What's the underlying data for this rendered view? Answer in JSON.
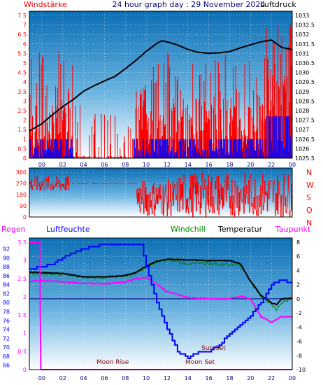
{
  "header": {
    "left_label": "Windstärke",
    "title": "24 hour graph day : 29 November 2024",
    "right_label": "Luftdruck"
  },
  "colors": {
    "red": "#ff0000",
    "blue": "#0000ff",
    "black": "#000000",
    "magenta": "#ff00ff",
    "green": "#008000",
    "navy": "#000080",
    "darkred": "#8b0000",
    "sky_top": "#0b6fb5",
    "sky_bottom": "#ffffff"
  },
  "chart_data": [
    {
      "type": "line",
      "panel": "wind-pressure",
      "x_ticks": [
        "00",
        "02",
        "04",
        "06",
        "08",
        "10",
        "12",
        "14",
        "16",
        "18",
        "20",
        "22",
        "00"
      ],
      "y_left_ticks": [
        "0",
        "0.5",
        "1",
        "1.5",
        "2",
        "2.5",
        "3",
        "3.5",
        "4",
        "4.5",
        "5",
        "5.5",
        "6",
        "6.5",
        "7",
        "7.5"
      ],
      "y_right_ticks": [
        "1025.5",
        "1026",
        "1026.5",
        "1027",
        "1027.5",
        "1028",
        "1028.5",
        "1029",
        "1029.5",
        "1030",
        "1030.5",
        "1031",
        "1031.5",
        "1032",
        "1032.5",
        "1033"
      ],
      "ylim_left": [
        0,
        7.5
      ],
      "ylim_right": [
        1025.5,
        1033
      ],
      "series": [
        {
          "color": "red",
          "axis": "left",
          "desc": "gust"
        },
        {
          "color": "blue",
          "axis": "left",
          "desc": "average wind"
        },
        {
          "color": "black",
          "axis": "right",
          "desc": "pressure"
        }
      ],
      "pressure_points": [
        [
          -1.2,
          1026.95
        ],
        [
          0,
          1027.3
        ],
        [
          1,
          1027.8
        ],
        [
          2,
          1028.2
        ],
        [
          3,
          1028.6
        ],
        [
          4,
          1029.0
        ],
        [
          5,
          1029.3
        ],
        [
          6,
          1029.55
        ],
        [
          7,
          1029.8
        ],
        [
          8,
          1030.2
        ],
        [
          9,
          1030.65
        ],
        [
          10,
          1031.1
        ],
        [
          11,
          1031.5
        ],
        [
          11.5,
          1031.65
        ],
        [
          12,
          1031.6
        ],
        [
          13,
          1031.45
        ],
        [
          14,
          1031.2
        ],
        [
          15,
          1031.05
        ],
        [
          16,
          1031.0
        ],
        [
          17,
          1031.05
        ],
        [
          18,
          1031.1
        ],
        [
          19,
          1031.3
        ],
        [
          20,
          1031.45
        ],
        [
          21,
          1031.6
        ],
        [
          22,
          1031.7
        ],
        [
          22.5,
          1031.5
        ],
        [
          23,
          1031.3
        ],
        [
          24,
          1031.2
        ]
      ],
      "gust_segments": [
        [
          -1.2,
          3,
          2.6
        ],
        [
          3,
          9,
          0.1
        ],
        [
          9,
          21.5,
          2.6
        ],
        [
          21.5,
          24,
          4.2
        ]
      ],
      "avg_segments": [
        [
          -1.2,
          3,
          1.0
        ],
        [
          3,
          8.8,
          0
        ],
        [
          8.8,
          21.5,
          1.0
        ],
        [
          21.5,
          24,
          2.2
        ]
      ]
    },
    {
      "type": "scatter",
      "panel": "wind-direction",
      "y_ticks": [
        "0",
        "90",
        "180",
        "270",
        "360"
      ],
      "compass": [
        "N",
        "W",
        "S",
        "O",
        "N"
      ],
      "ylim": [
        0,
        360
      ],
      "series": [
        {
          "color": "red"
        }
      ],
      "blocks": [
        [
          -1.2,
          2.6,
          200,
          330
        ],
        [
          2.6,
          9.1,
          265,
          275
        ],
        [
          9.1,
          13,
          0,
          300
        ],
        [
          13,
          24,
          0,
          360
        ]
      ]
    },
    {
      "type": "line",
      "panel": "temperature-humidity",
      "legend": [
        "Regen",
        "Luftfeuchte",
        "Windchill",
        "Temperatur",
        "Taupunkt"
      ],
      "y_left_ticks": [
        "0",
        "0.5",
        "1",
        "1.5",
        "2",
        "2.5",
        "3",
        "3.5"
      ],
      "y_humidity_ticks": [
        "66",
        "68",
        "70",
        "72",
        "74",
        "76",
        "78",
        "80",
        "82",
        "84",
        "86",
        "88",
        "90",
        "92"
      ],
      "y_right_ticks": [
        "-10",
        "-8",
        "-6",
        "-4",
        "-2",
        "0",
        "2",
        "4",
        "6",
        "8"
      ],
      "ylim_right": [
        -10,
        8
      ],
      "ylim_humidity": [
        65,
        93.5
      ],
      "ylim_left": [
        0,
        3.5
      ],
      "annotations": [
        "Moon Rise",
        "Moon Set",
        "Sun Set"
      ],
      "temperature_points": [
        [
          -1.2,
          3.8
        ],
        [
          0,
          3.7
        ],
        [
          2,
          3.6
        ],
        [
          4,
          3.1
        ],
        [
          6,
          3.1
        ],
        [
          8,
          3.3
        ],
        [
          9,
          3.7
        ],
        [
          10,
          4.6
        ],
        [
          11,
          5.3
        ],
        [
          12,
          5.6
        ],
        [
          14,
          5.5
        ],
        [
          16,
          5.4
        ],
        [
          18,
          5.4
        ],
        [
          19,
          5.0
        ],
        [
          20,
          2.5
        ],
        [
          21,
          0.5
        ],
        [
          22,
          -0.6
        ],
        [
          22.5,
          -0.8
        ],
        [
          23,
          0
        ],
        [
          24,
          0.1
        ]
      ],
      "windchill_points": [
        [
          -1.2,
          3.6
        ],
        [
          0,
          3.5
        ],
        [
          2,
          3.5
        ],
        [
          4,
          3.0
        ],
        [
          6,
          3.0
        ],
        [
          8,
          3.2
        ],
        [
          9,
          3.6
        ],
        [
          10,
          4.5
        ],
        [
          11,
          5.2
        ],
        [
          12,
          5.5
        ],
        [
          14,
          5.0
        ],
        [
          16,
          5.0
        ],
        [
          18,
          4.8
        ],
        [
          19,
          4.8
        ],
        [
          20,
          2.4
        ],
        [
          21,
          0.4
        ],
        [
          22,
          -0.9
        ],
        [
          22.5,
          -1.5
        ],
        [
          23,
          -0.5
        ],
        [
          24,
          0
        ]
      ],
      "dewpoint_points": [
        [
          -1.2,
          2.5
        ],
        [
          0,
          2.6
        ],
        [
          2,
          2.4
        ],
        [
          4,
          2.2
        ],
        [
          6,
          2.1
        ],
        [
          8,
          2.4
        ],
        [
          9,
          2.8
        ],
        [
          10,
          3.0
        ],
        [
          11,
          2.1
        ],
        [
          12,
          1.0
        ],
        [
          14,
          0.2
        ],
        [
          16,
          0.0
        ],
        [
          18,
          0.0
        ],
        [
          19,
          0.4
        ],
        [
          20,
          0.0
        ],
        [
          21,
          -2.5
        ],
        [
          22,
          -3.3
        ],
        [
          23,
          -2.5
        ],
        [
          24,
          -2.6
        ]
      ],
      "humidity_points": [
        [
          -1.2,
          87.5
        ],
        [
          0,
          88
        ],
        [
          1,
          88.5
        ],
        [
          2,
          90
        ],
        [
          4,
          92
        ],
        [
          6,
          93
        ],
        [
          8,
          93
        ],
        [
          9.5,
          93
        ],
        [
          10,
          88
        ],
        [
          11,
          80
        ],
        [
          12,
          74
        ],
        [
          13,
          69
        ],
        [
          14,
          67.5
        ],
        [
          15,
          69
        ],
        [
          16,
          69
        ],
        [
          17,
          70.5
        ],
        [
          18,
          73
        ],
        [
          19,
          75
        ],
        [
          20,
          77
        ],
        [
          21,
          80
        ],
        [
          22,
          84
        ],
        [
          23,
          85
        ],
        [
          24,
          84
        ]
      ],
      "rain_points": [
        [
          -1.2,
          3.5
        ],
        [
          -0.2,
          3.5
        ],
        [
          -0.1,
          0
        ],
        [
          24,
          0
        ]
      ]
    }
  ]
}
